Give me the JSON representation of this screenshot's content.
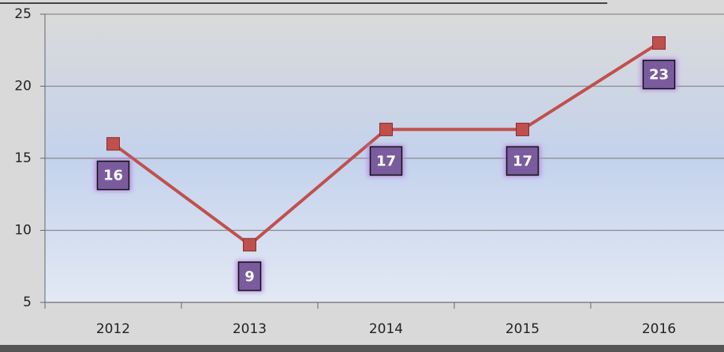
{
  "chart_data": {
    "type": "line",
    "categories": [
      "2012",
      "2013",
      "2014",
      "2015",
      "2016"
    ],
    "values": [
      16,
      9,
      17,
      17,
      23
    ],
    "color": "#c0504d",
    "ylim": [
      5,
      25
    ],
    "yticks": [
      5,
      10,
      15,
      20,
      25
    ],
    "grid": true
  }
}
